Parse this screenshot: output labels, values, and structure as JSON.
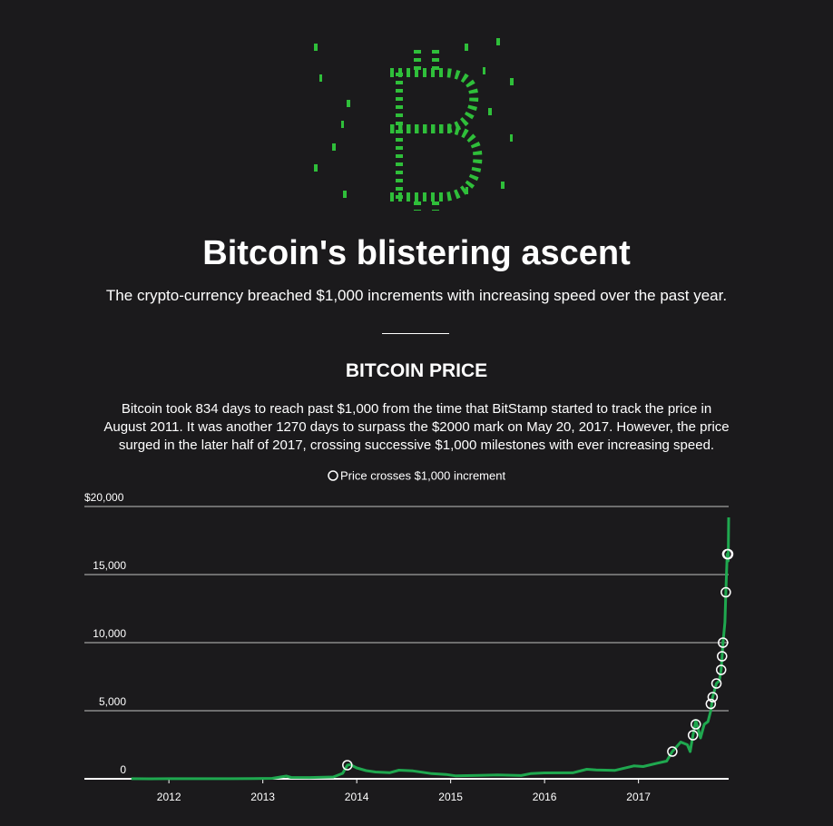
{
  "header": {
    "title": "Bitcoin's blistering ascent",
    "subtitle": "The crypto-currency breached $1,000 increments with increasing speed over the past year."
  },
  "section": {
    "heading": "BITCOIN PRICE",
    "description": "Bitcoin took 834 days to reach past $1,000 from the time that BitStamp started to track the price in August 2011. It was another 1270 days to surpass the $2000 mark on May 20, 2017. However, the price surged in the later half of 2017, crossing successive $1,000 milestones with ever increasing speed."
  },
  "chart_data": {
    "type": "line",
    "xlim": [
      2011.1,
      2017.96
    ],
    "xticks": [
      2012,
      2013,
      2014,
      2015,
      2016,
      2017
    ],
    "ylim": [
      0,
      20000
    ],
    "yticks": [
      0,
      {
        "value": 5000,
        "label": "5,000"
      },
      {
        "value": 10000,
        "label": "10,000"
      },
      {
        "value": 15000,
        "label": "15,000"
      },
      {
        "value": 20000,
        "label": "$20,000"
      }
    ],
    "grid": true,
    "series": [
      {
        "type": "line",
        "color": "#1fa84f",
        "x": [
          2011.6,
          2011.8,
          2012.0,
          2012.3,
          2012.6,
          2012.9,
          2013.1,
          2013.25,
          2013.3,
          2013.5,
          2013.75,
          2013.85,
          2013.9,
          2013.93,
          2014.0,
          2014.1,
          2014.2,
          2014.35,
          2014.45,
          2014.6,
          2014.8,
          2014.95,
          2015.05,
          2015.3,
          2015.5,
          2015.75,
          2015.85,
          2016.0,
          2016.3,
          2016.45,
          2016.55,
          2016.75,
          2016.95,
          2017.05,
          2017.2,
          2017.3,
          2017.36,
          2017.45,
          2017.52,
          2017.55,
          2017.58,
          2017.61,
          2017.66,
          2017.7,
          2017.74,
          2017.77,
          2017.79,
          2017.83,
          2017.86,
          2017.88,
          2017.89,
          2017.9,
          2017.92,
          2017.93,
          2017.945,
          2017.955,
          2017.96
        ],
        "values": [
          10,
          3,
          5,
          5,
          10,
          13,
          30,
          200,
          100,
          90,
          130,
          400,
          1000,
          1050,
          800,
          600,
          500,
          450,
          630,
          580,
          380,
          320,
          220,
          250,
          280,
          240,
          380,
          430,
          440,
          700,
          650,
          620,
          950,
          900,
          1150,
          1300,
          2000,
          2700,
          2500,
          2000,
          3200,
          4300,
          3000,
          4000,
          4200,
          5000,
          6000,
          7000,
          7200,
          8000,
          9000,
          10000,
          11500,
          13700,
          16500,
          16000,
          19200
        ]
      },
      {
        "type": "scatter",
        "name": "Price crosses $1,000 increment",
        "color": "#ffffff",
        "x": [
          2013.9,
          2017.36,
          2017.58,
          2017.61,
          2017.77,
          2017.79,
          2017.83,
          2017.88,
          2017.89,
          2017.9,
          2017.93,
          2017.945,
          2017.955
        ],
        "values": [
          1000,
          2000,
          3200,
          4000,
          5500,
          6000,
          7000,
          8000,
          9000,
          10000,
          13700,
          16500,
          16500
        ]
      }
    ]
  }
}
